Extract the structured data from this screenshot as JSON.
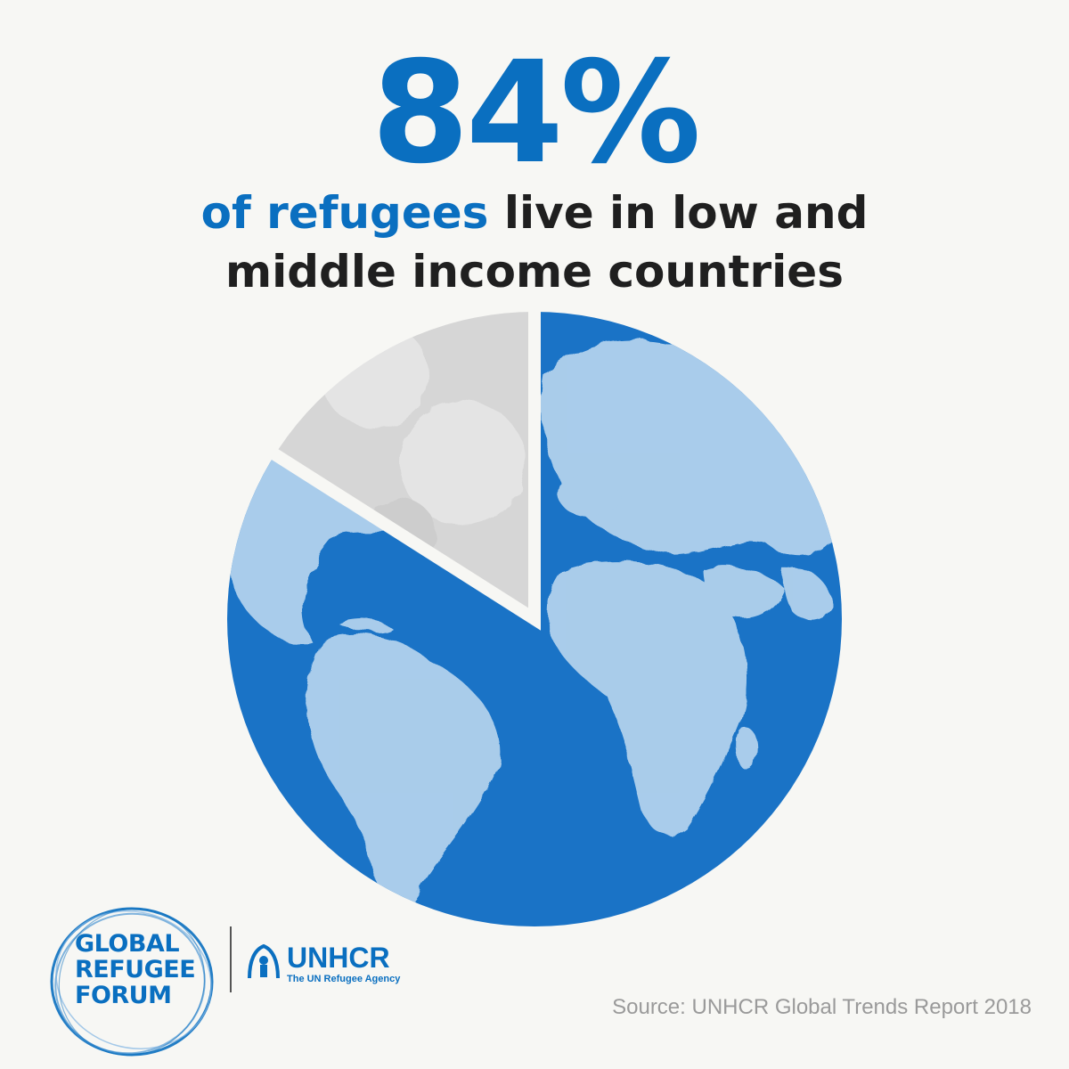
{
  "chart_data": {
    "type": "pie",
    "title": "84%",
    "subtitle": "of refugees live in low and middle income countries",
    "slices": [
      {
        "label": "low and middle income countries",
        "value": 84,
        "color": "#0a6fc0"
      },
      {
        "label": "",
        "value": 16,
        "color": "#d6d6d6"
      }
    ],
    "start_angle_deg": 0,
    "direction": "clockwise",
    "fill": "world-map-texture"
  },
  "header": {
    "big_number": "84%",
    "subtitle_accent": "of refugees",
    "subtitle_line1_rest": " live in low and",
    "subtitle_line2": "middle income countries"
  },
  "footer": {
    "gri_logo_line1": "GLOBAL",
    "gri_logo_line2": "REFUGEE",
    "gri_logo_line3": "FORUM",
    "unhcr_name": "UNHCR",
    "unhcr_tagline": "The UN Refugee Agency",
    "source": "Source: UNHCR Global Trends Report 2018"
  },
  "colors": {
    "accent": "#0a6fc0",
    "ocean": "#1a73c6",
    "land": "#b6d4ee",
    "minority_slice": "#d6d6d6",
    "background": "#f7f7f4",
    "source_text": "#9a9a9a"
  }
}
